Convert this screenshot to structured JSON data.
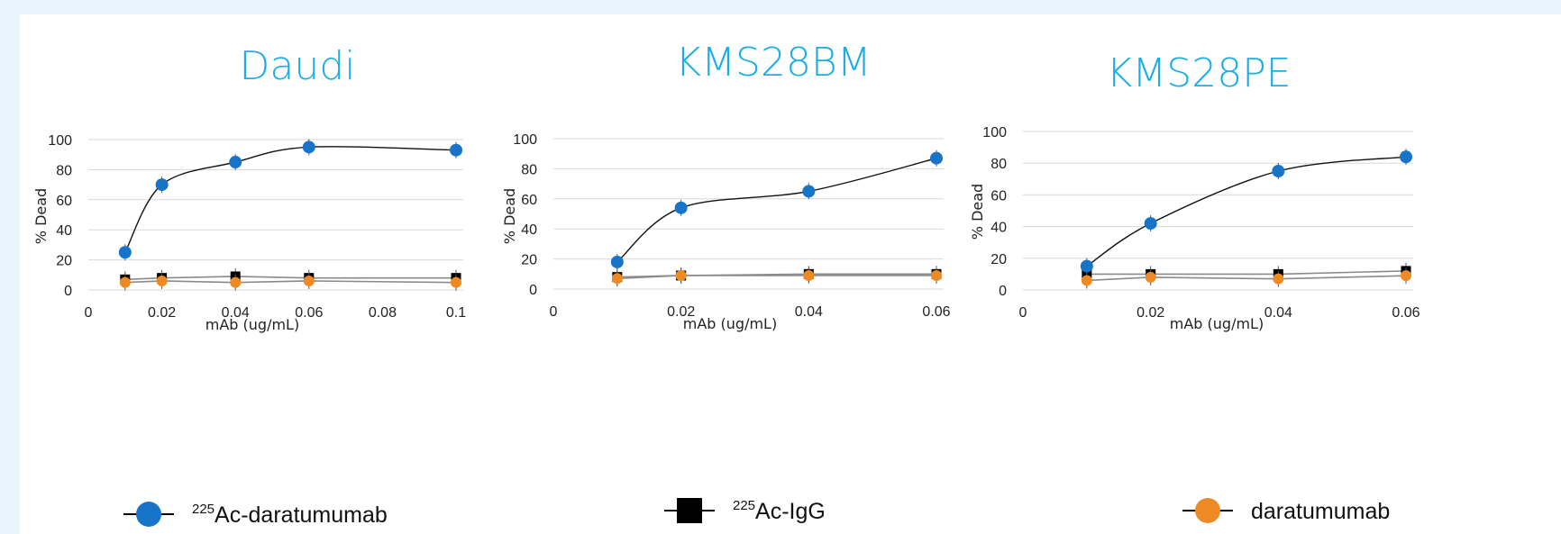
{
  "colors": {
    "background": "#e8f5fc",
    "panel": "#ffffff",
    "title": "#1aaee6",
    "ac_daratumumab": "#1874c9",
    "ac_igg": "#000000",
    "daratumumab": "#ee8a24",
    "grid": "#d9d9d9",
    "text": "#222222"
  },
  "legend": [
    {
      "sup": "225",
      "label": "Ac-daratumumab",
      "marker": "circle",
      "color": "#1874c9"
    },
    {
      "sup": "225",
      "label": "Ac-IgG",
      "marker": "square",
      "color": "#000000"
    },
    {
      "sup": "",
      "label": "daratumumab",
      "marker": "circle",
      "color": "#ee8a24"
    }
  ],
  "chart_data": [
    {
      "type": "line",
      "title": "Daudi",
      "xlabel": "mAb (ug/mL)",
      "ylabel": "% Dead",
      "xlim": [
        0,
        0.1
      ],
      "ylim": [
        0,
        100
      ],
      "x_ticks": [
        "0",
        "0.02",
        "0.04",
        "0.06",
        "0.08",
        "0.1"
      ],
      "y_ticks": [
        "0",
        "20",
        "40",
        "60",
        "80",
        "100"
      ],
      "grid": true,
      "series": [
        {
          "name": "225Ac-daratumumab",
          "color": "#1874c9",
          "marker": "circle",
          "smooth": true,
          "x": [
            0.01,
            0.02,
            0.04,
            0.06,
            0.1
          ],
          "y": [
            25,
            70,
            85,
            95,
            93
          ]
        },
        {
          "name": "225Ac-IgG",
          "color": "#000000",
          "marker": "square",
          "smooth": false,
          "x": [
            0.01,
            0.02,
            0.04,
            0.06,
            0.1
          ],
          "y": [
            7,
            8,
            9,
            8,
            8
          ]
        },
        {
          "name": "daratumumab",
          "color": "#ee8a24",
          "marker": "circle",
          "smooth": false,
          "x": [
            0.01,
            0.02,
            0.04,
            0.06,
            0.1
          ],
          "y": [
            5,
            6,
            5,
            6,
            5
          ]
        }
      ]
    },
    {
      "type": "line",
      "title": "KMS28BM",
      "xlabel": "mAb (ug/mL)",
      "ylabel": "% Dead",
      "xlim": [
        0,
        0.06
      ],
      "ylim": [
        0,
        100
      ],
      "x_ticks": [
        "0",
        "0.02",
        "0.04",
        "0.06"
      ],
      "y_ticks": [
        "0",
        "20",
        "40",
        "60",
        "80",
        "100"
      ],
      "grid": true,
      "series": [
        {
          "name": "225Ac-daratumumab",
          "color": "#1874c9",
          "marker": "circle",
          "smooth": true,
          "x": [
            0.01,
            0.02,
            0.04,
            0.06
          ],
          "y": [
            18,
            54,
            65,
            87
          ]
        },
        {
          "name": "225Ac-IgG",
          "color": "#000000",
          "marker": "square",
          "smooth": false,
          "x": [
            0.01,
            0.02,
            0.04,
            0.06
          ],
          "y": [
            8,
            9,
            10,
            10
          ]
        },
        {
          "name": "daratumumab",
          "color": "#ee8a24",
          "marker": "circle",
          "smooth": false,
          "x": [
            0.01,
            0.02,
            0.04,
            0.06
          ],
          "y": [
            7,
            9,
            9,
            9
          ]
        }
      ]
    },
    {
      "type": "line",
      "title": "KMS28PE",
      "xlabel": "mAb (ug/mL)",
      "ylabel": "% Dead",
      "xlim": [
        0,
        0.06
      ],
      "ylim": [
        0,
        100
      ],
      "x_ticks": [
        "0",
        "0.02",
        "0.04",
        "0.06"
      ],
      "y_ticks": [
        "0",
        "20",
        "40",
        "60",
        "80",
        "100"
      ],
      "grid": true,
      "series": [
        {
          "name": "225Ac-daratumumab",
          "color": "#1874c9",
          "marker": "circle",
          "smooth": true,
          "x": [
            0.01,
            0.02,
            0.04,
            0.06
          ],
          "y": [
            15,
            42,
            75,
            84
          ]
        },
        {
          "name": "225Ac-IgG",
          "color": "#000000",
          "marker": "square",
          "smooth": false,
          "x": [
            0.01,
            0.02,
            0.04,
            0.06
          ],
          "y": [
            10,
            10,
            10,
            12
          ]
        },
        {
          "name": "daratumumab",
          "color": "#ee8a24",
          "marker": "circle",
          "smooth": false,
          "x": [
            0.01,
            0.02,
            0.04,
            0.06
          ],
          "y": [
            6,
            8,
            7,
            9
          ]
        }
      ]
    }
  ]
}
